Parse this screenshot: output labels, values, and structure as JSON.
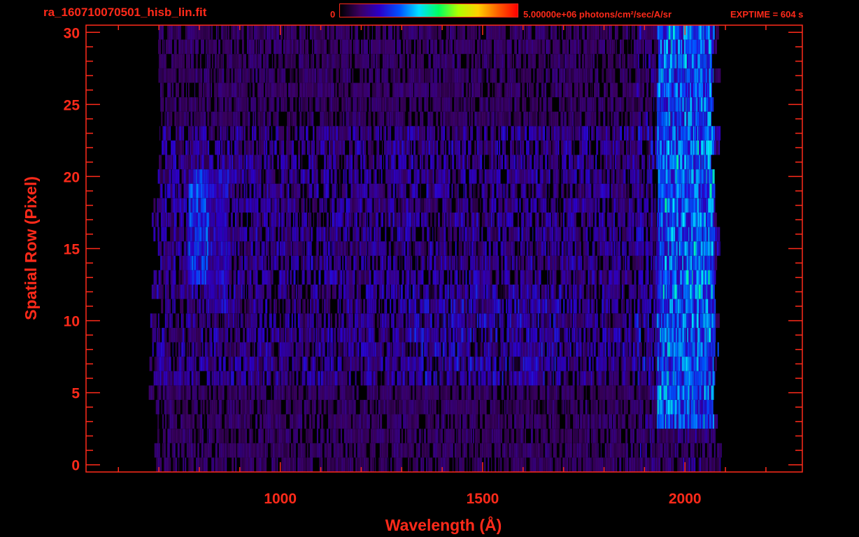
{
  "header": {
    "title": "ra_160710070501_hisb_lin.fit",
    "colorbar_min": "0",
    "colorbar_max": "5.00000e+06 photons/cm²/sec/A/sr",
    "exptime": "EXPTIME = 604 s"
  },
  "colors": {
    "axis": "#ff2a1a",
    "background": "#000000",
    "colormap": [
      "#000000",
      "#3a0060",
      "#2b00c8",
      "#0050ff",
      "#00e0ff",
      "#00ff60",
      "#b0ff00",
      "#ffd000",
      "#ff6000",
      "#ff0000"
    ]
  },
  "chart_data": {
    "type": "heatmap",
    "title": "ra_160710070501_hisb_lin.fit",
    "xlabel": "Wavelength (Å)",
    "ylabel": "Spatial Row (Pixel)",
    "xlim": [
      520,
      2290
    ],
    "ylim": [
      -0.5,
      30.5
    ],
    "xticks": [
      1000,
      1500,
      2000
    ],
    "yticks": [
      0,
      5,
      10,
      15,
      20,
      25,
      30
    ],
    "x_minor_step": 100,
    "y_minor_step": 1,
    "value_range": [
      0,
      5000000
    ],
    "value_unit": "photons/cm²/sec/A/sr",
    "data_extent_x": [
      690,
      2090
    ],
    "data_rows": [
      0,
      30
    ],
    "features": [
      {
        "x": [
          770,
          820
        ],
        "rows": [
          13,
          20
        ],
        "value": 1800000
      },
      {
        "x": [
          820,
          870
        ],
        "rows": [
          11,
          20
        ],
        "value": 1300000
      },
      {
        "x": [
          1210,
          1230
        ],
        "rows": [
          7,
          12
        ],
        "value": 1200000
      },
      {
        "x": [
          1930,
          2070
        ],
        "rows": [
          3,
          30
        ],
        "value": 2000000
      }
    ]
  }
}
